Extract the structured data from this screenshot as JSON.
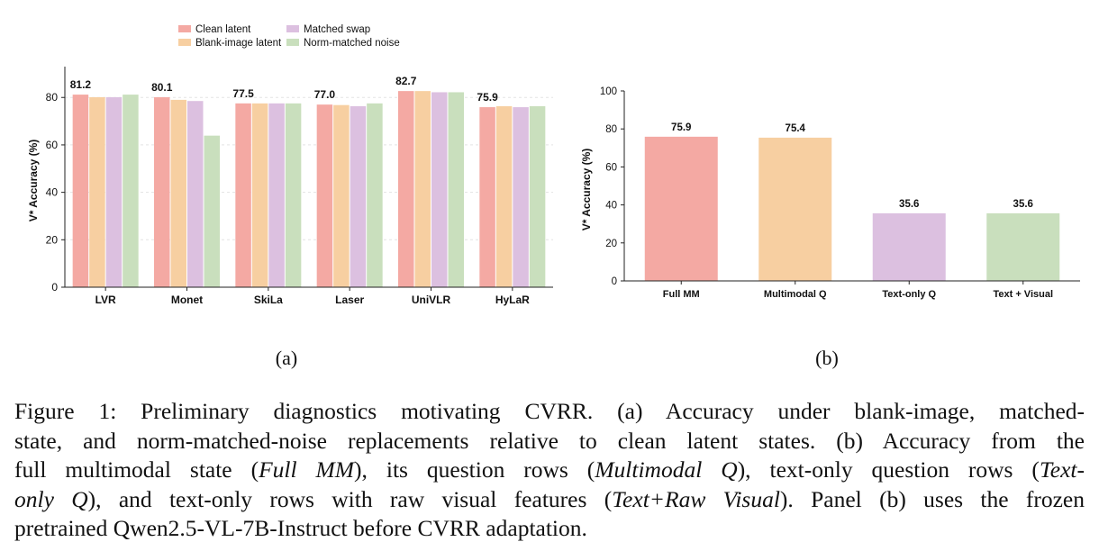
{
  "figure": {
    "panel_a_label": "(a)",
    "panel_b_label": "(b)",
    "caption_lines": [
      [
        {
          "t": "Figure 1:  Preliminary diagnostics motivating CVRR. (a) Accuracy under blank-image, matched-"
        }
      ],
      [
        {
          "t": "state, and norm-matched-noise replacements relative to clean latent states.  (b) Accuracy from the"
        }
      ],
      [
        {
          "t": "full multimodal state ("
        },
        {
          "t": "Full MM",
          "i": true
        },
        {
          "t": "), its question rows ("
        },
        {
          "t": "Multimodal Q",
          "i": true
        },
        {
          "t": "), text-only question rows ("
        },
        {
          "t": "Text-",
          "i": true
        }
      ],
      [
        {
          "t": "only Q",
          "i": true
        },
        {
          "t": "), and text-only rows with raw visual features ("
        },
        {
          "t": "Text+Raw Visual",
          "i": true
        },
        {
          "t": ").  Panel (b) uses the frozen"
        }
      ],
      [
        {
          "t": "pretrained Qwen2.5-VL-7B-Instruct before CVRR adaptation."
        }
      ]
    ]
  },
  "chart_data": [
    {
      "type": "bar",
      "categories": [
        "LVR",
        "Monet",
        "SkiLa",
        "Laser",
        "UniVLR",
        "HyLaR"
      ],
      "ylabel": "V* Accuracy (%)",
      "ylim": [
        0,
        93
      ],
      "yticks": [
        0,
        20,
        40,
        60,
        80
      ],
      "grid": "y",
      "legend_position": "top",
      "series": [
        {
          "name": "Clean latent",
          "color": "#f4a9a3",
          "values": [
            81.2,
            80.1,
            77.5,
            77.0,
            82.7,
            75.9
          ]
        },
        {
          "name": "Blank-image latent",
          "color": "#f7cfa1",
          "values": [
            80.1,
            79.0,
            77.5,
            76.8,
            82.7,
            76.3
          ]
        },
        {
          "name": "Matched swap",
          "color": "#dcc0e0",
          "values": [
            80.1,
            78.5,
            77.5,
            76.3,
            82.2,
            75.9
          ]
        },
        {
          "name": "Norm-matched noise",
          "color": "#c9dfbd",
          "values": [
            81.2,
            63.9,
            77.5,
            77.5,
            82.2,
            76.3
          ]
        }
      ],
      "data_labels": [
        81.2,
        80.1,
        77.5,
        77.0,
        82.7,
        75.9
      ],
      "data_label_series": "Clean latent"
    },
    {
      "type": "bar",
      "categories": [
        "Full MM",
        "Multimodal Q",
        "Text-only Q",
        "Text + Visual"
      ],
      "values": [
        75.9,
        75.4,
        35.6,
        35.6
      ],
      "colors": [
        "#f4a9a3",
        "#f7cfa1",
        "#dcc0e0",
        "#c9dfbd"
      ],
      "ylabel": "V* Accuracy (%)",
      "ylim": [
        0,
        100
      ],
      "yticks": [
        0,
        20,
        40,
        60,
        80,
        100
      ],
      "grid": "none"
    }
  ]
}
